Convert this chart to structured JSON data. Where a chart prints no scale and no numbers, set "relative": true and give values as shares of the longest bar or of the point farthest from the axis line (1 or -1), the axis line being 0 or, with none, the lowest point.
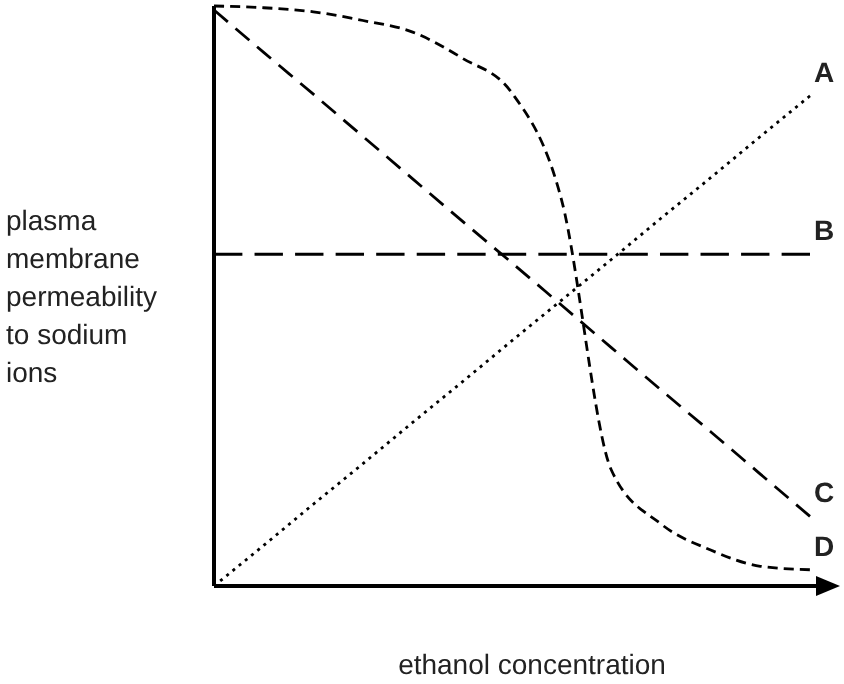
{
  "chart_data": {
    "type": "line",
    "relative": true,
    "xlabel": "ethanol concentration",
    "ylabel": "plasma membrane permeability to sodium ions",
    "legend": false,
    "marker": "none",
    "categories": [
      null,
      null,
      null,
      null,
      null,
      null,
      null,
      null,
      null,
      null,
      null,
      null,
      null
    ],
    "series": [
      {
        "name": "A",
        "color": "#000000",
        "line_style": "dotted",
        "values": [
          0,
          0.07,
          0.141,
          0.211,
          0.282,
          0.352,
          0.423,
          0.493,
          0.563,
          0.634,
          0.704,
          0.775,
          0.845
        ]
      },
      {
        "name": "B",
        "color": "#000000",
        "line_style": "dashed",
        "values": [
          0.572,
          0.572,
          0.572,
          0.572,
          0.572,
          0.572,
          0.572,
          0.572,
          0.572,
          0.572,
          0.572,
          0.572,
          0.572
        ]
      },
      {
        "name": "C",
        "color": "#000000",
        "line_style": "dashed",
        "values": [
          0.993,
          0.92,
          0.848,
          0.775,
          0.702,
          0.629,
          0.557,
          0.484,
          0.411,
          0.338,
          0.266,
          0.193,
          0.12
        ]
      },
      {
        "name": "D",
        "color": "#000000",
        "line_style": "dashed",
        "values": [
          1,
          0.997,
          0.99,
          0.975,
          0.955,
          0.91,
          0.85,
          0.665,
          0.2,
          0.107,
          0.062,
          0.034,
          0.028
        ]
      }
    ]
  }
}
